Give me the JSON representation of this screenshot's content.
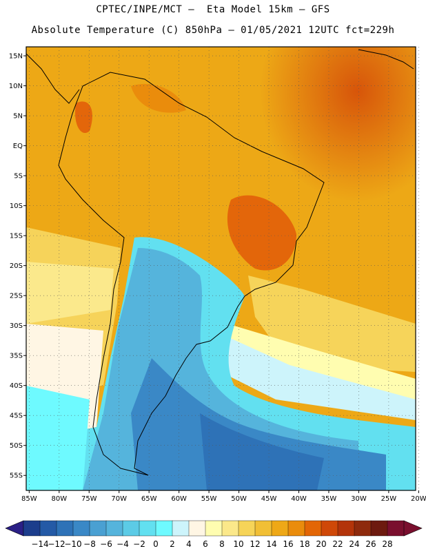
{
  "header": {
    "line1": "CPTEC/INPE/MCT –  Eta Model 15km – GFS",
    "line2": "Absolute Temperature (C) 850hPa – 01/05/2021 12UTC fct=229h"
  },
  "map": {
    "lat_labels": [
      "15N",
      "10N",
      "5N",
      "EQ",
      "5S",
      "10S",
      "15S",
      "20S",
      "25S",
      "30S",
      "35S",
      "40S",
      "45S",
      "50S",
      "55S"
    ],
    "lat_values": [
      15,
      10,
      5,
      0,
      -5,
      -10,
      -15,
      -20,
      -25,
      -30,
      -35,
      -40,
      -45,
      -50,
      -55
    ],
    "lon_labels": [
      "85W",
      "80W",
      "75W",
      "70W",
      "65W",
      "60W",
      "55W",
      "50W",
      "45W",
      "40W",
      "35W",
      "30W",
      "25W",
      "20W"
    ],
    "lon_values": [
      -85,
      -80,
      -75,
      -70,
      -65,
      -60,
      -55,
      -50,
      -45,
      -40,
      -35,
      -30,
      -25,
      -20
    ],
    "extent": {
      "lon_min": -85.5,
      "lon_max": -20.5,
      "lat_min": -57.5,
      "lat_max": 16.5
    }
  },
  "colorbar": {
    "labels": [
      "-14",
      "-12",
      "-10",
      "-8",
      "-6",
      "-4",
      "-2",
      "0",
      "2",
      "4",
      "6",
      "8",
      "10",
      "12",
      "14",
      "16",
      "18",
      "20",
      "22",
      "24",
      "26",
      "28"
    ],
    "colors": [
      "#1c3d8c",
      "#245aa6",
      "#2e72b7",
      "#3a88c6",
      "#4aa0d2",
      "#55b4dc",
      "#5ccbe6",
      "#62e0f0",
      "#6efaff",
      "#cdf4fb",
      "#fff6e4",
      "#fffdb0",
      "#fbe88a",
      "#f6d458",
      "#f1bf35",
      "#eea817",
      "#ea8c0c",
      "#e36606",
      "#cf4808",
      "#b3340a",
      "#8e2a0d",
      "#6d1a0f",
      "#7a0f2e"
    ]
  }
}
